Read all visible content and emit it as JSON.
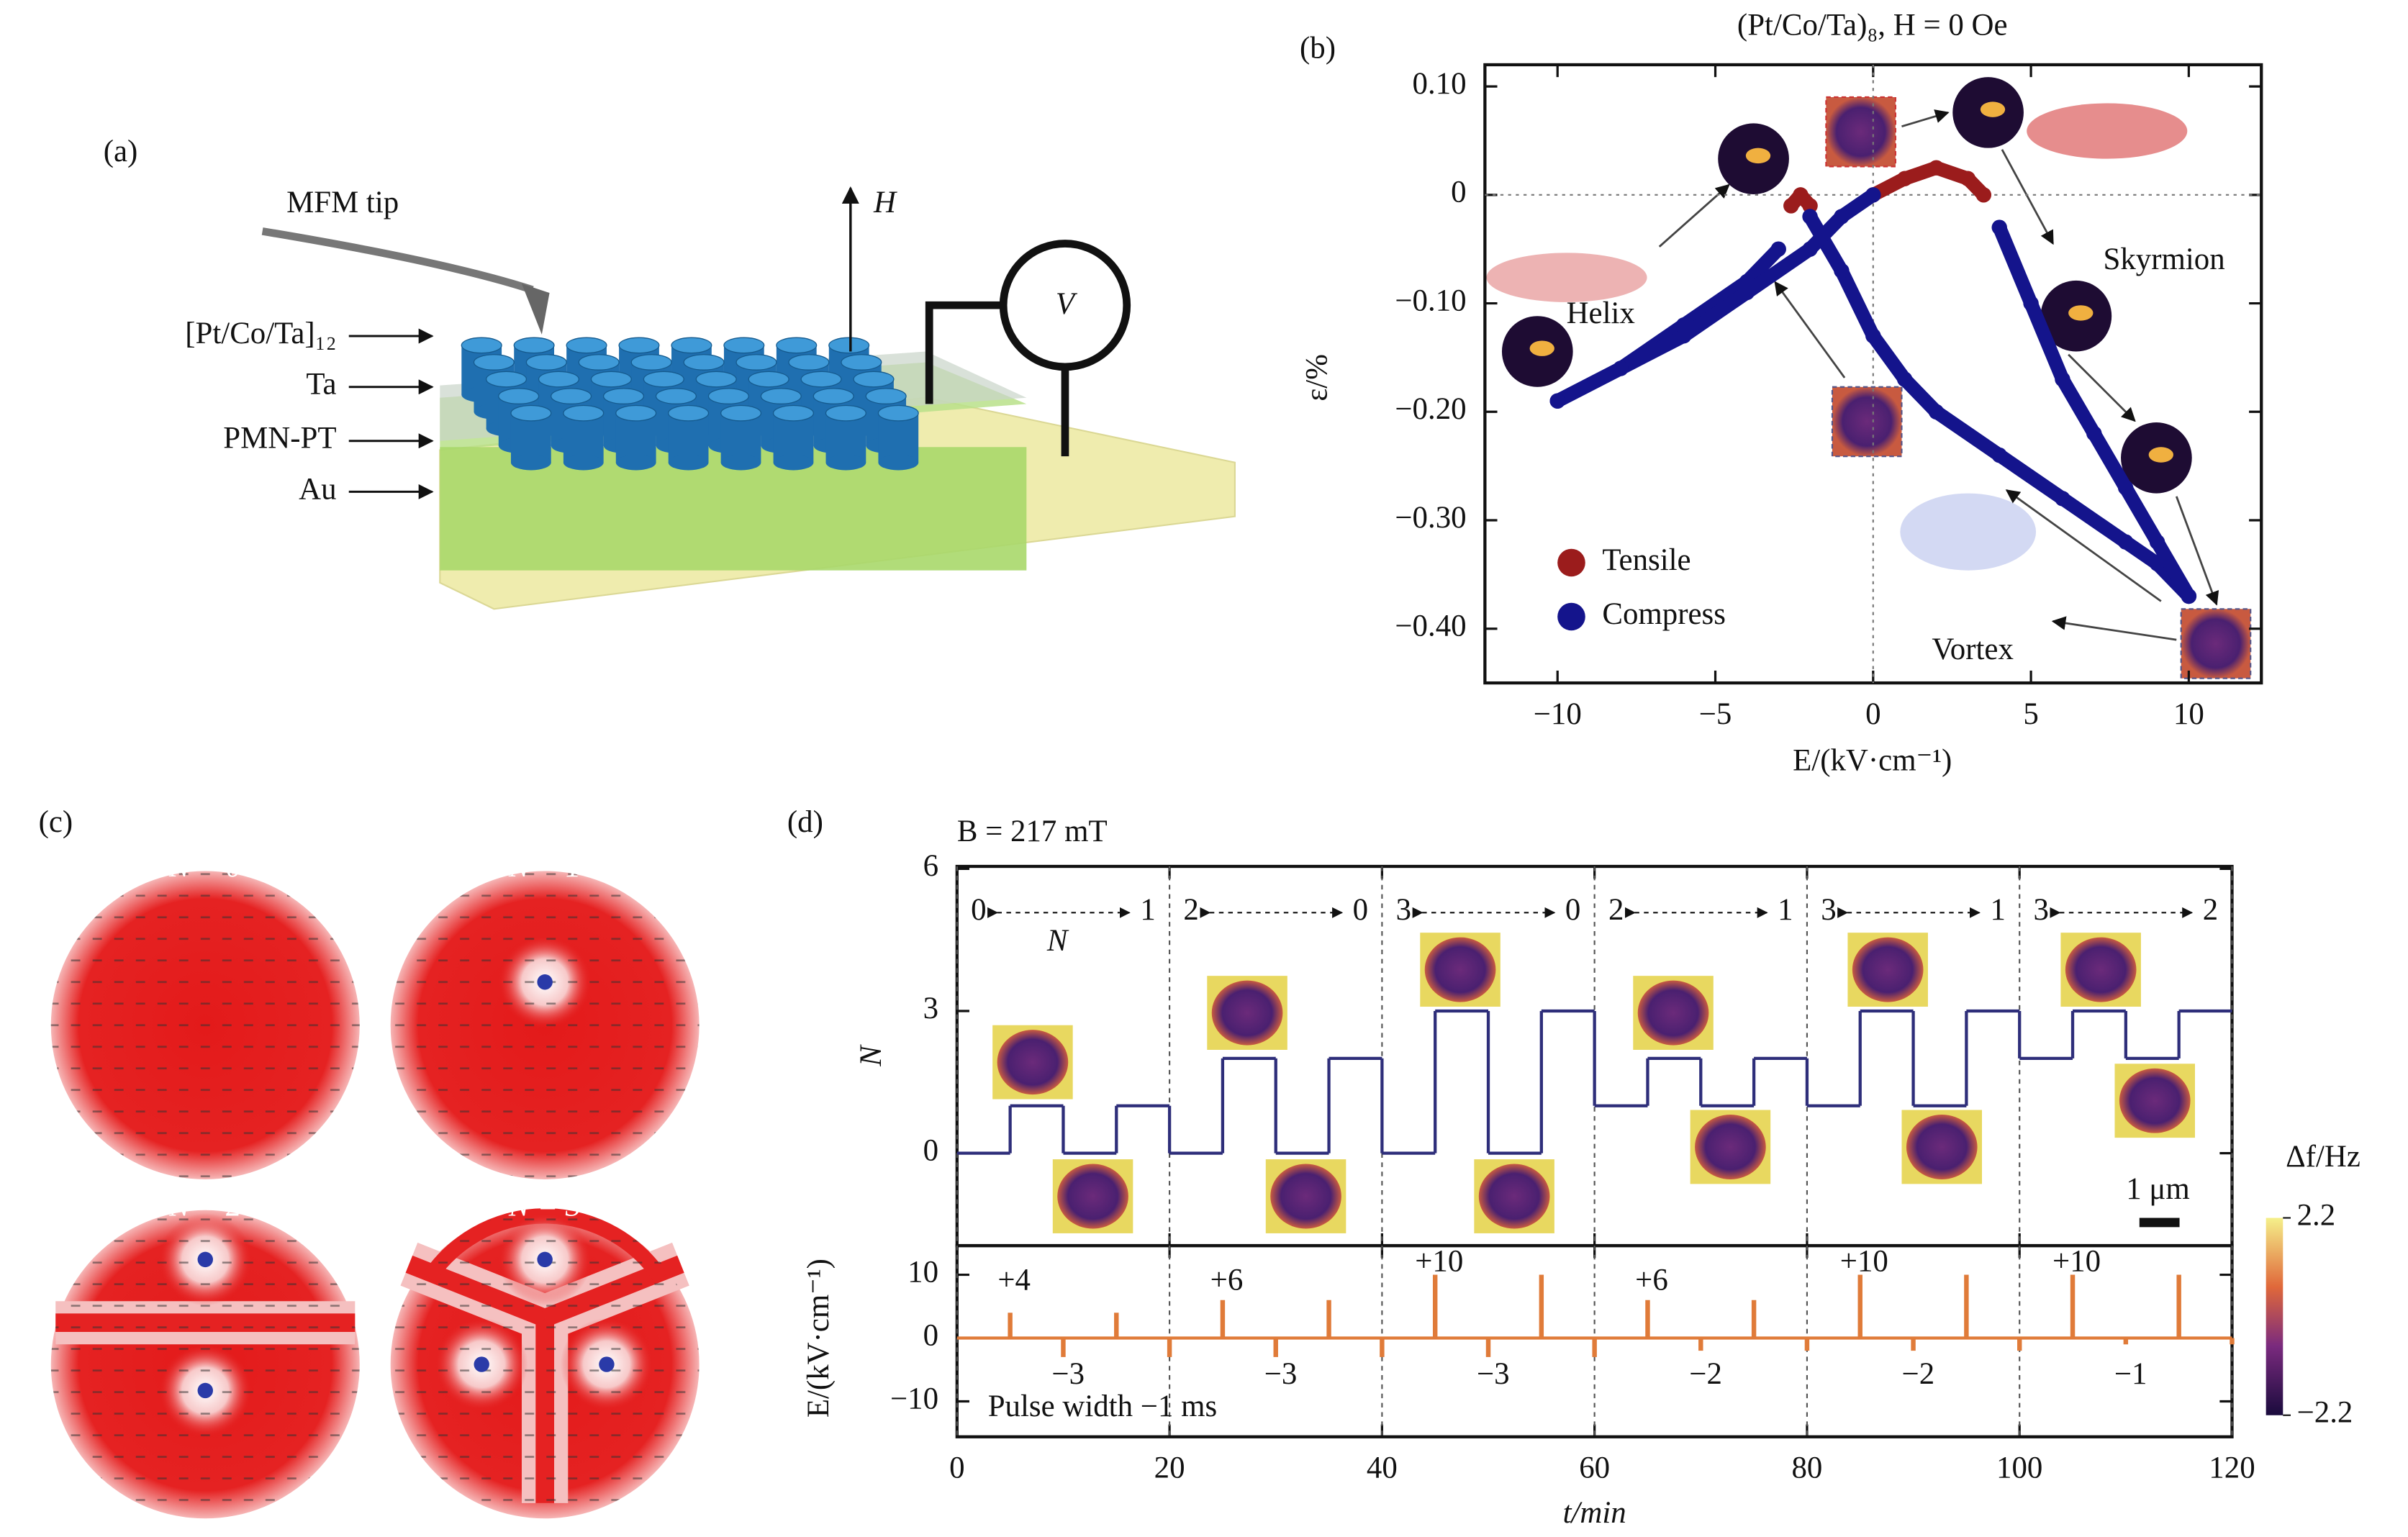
{
  "panel_labels": [
    "(a)",
    "(b)",
    "(c)",
    "(d)"
  ],
  "diagram": {
    "tip": "MFM tip",
    "layers": [
      "[Pt/Co/Ta]₁₂",
      "Ta",
      "PMN-PT",
      "Au"
    ],
    "field": "H",
    "meter": "V"
  },
  "textures": {
    "labels": [
      "N = 0",
      "N = 1",
      "N = 2",
      "N = 3"
    ]
  },
  "chart_data": [
    {
      "type": "line",
      "title": "(Pt/Co/Ta)₈, H = 0 Oe",
      "xlabel": "E/(kV·cm⁻¹)",
      "ylabel": "ε/%",
      "xlim": [
        -12.3,
        12.3
      ],
      "ylim": [
        -0.45,
        0.12
      ],
      "xticks": [
        {
          "value": -10,
          "label": "−10"
        },
        {
          "value": -5,
          "label": "−5"
        },
        0,
        5,
        10
      ],
      "yticks": [
        {
          "value": 0.1,
          "label": "0.10"
        },
        0,
        {
          "value": -0.1,
          "label": "−0.10"
        },
        {
          "value": -0.2,
          "label": "−0.20"
        },
        {
          "value": -0.3,
          "label": "−0.30"
        },
        {
          "value": -0.4,
          "label": "−0.40"
        }
      ],
      "zero_lines": true,
      "legend": "lower left",
      "annotations": [
        "Helix",
        "Skyrmion",
        "Vortex"
      ],
      "series": [
        {
          "name": "Tensile",
          "color": "#9b1c1c",
          "x": [
            -2.6,
            -2.3,
            -2,
            null,
            0,
            1,
            2,
            3,
            3.5
          ],
          "values": [
            -0.01,
            0.0,
            -0.01,
            null,
            0.0,
            0.015,
            0.025,
            0.015,
            0.0
          ]
        },
        {
          "name": "Compress",
          "color": "#14148c",
          "x": [
            10,
            9,
            8,
            6,
            4,
            2,
            1,
            0,
            -1,
            -2,
            null,
            -3,
            -4,
            -6,
            -8,
            -10,
            null,
            -10,
            -8,
            -6,
            -4,
            -2,
            -1,
            0,
            null,
            4,
            5,
            6,
            7,
            8,
            9,
            10
          ],
          "values": [
            -0.37,
            -0.34,
            -0.32,
            -0.28,
            -0.24,
            -0.2,
            -0.17,
            -0.13,
            -0.07,
            -0.02,
            null,
            -0.05,
            -0.08,
            -0.12,
            -0.16,
            -0.19,
            null,
            -0.19,
            -0.16,
            -0.13,
            -0.09,
            -0.05,
            -0.02,
            0.0,
            null,
            -0.03,
            -0.1,
            -0.17,
            -0.22,
            -0.27,
            -0.32,
            -0.37
          ]
        }
      ]
    },
    {
      "type": "step",
      "title": "B = 217 mT",
      "ylabel": "N",
      "color": "#2e2e7a",
      "x": [
        0,
        5,
        10,
        15,
        20,
        25,
        30,
        35,
        40,
        45,
        50,
        55,
        60,
        65,
        70,
        75,
        80,
        85,
        90,
        95,
        100,
        105,
        110,
        115
      ],
      "values": [
        0,
        1,
        0,
        1,
        0,
        2,
        0,
        2,
        0,
        3,
        0,
        3,
        1,
        2,
        1,
        2,
        1,
        3,
        1,
        3,
        2,
        3,
        2,
        3
      ],
      "xlim": [
        0,
        120
      ],
      "ylim": [
        -1.95,
        6.05
      ],
      "xticks": [
        0,
        20,
        40,
        60,
        80,
        100,
        120
      ],
      "yticks": [
        0,
        3,
        6
      ],
      "xgrid": "dashed",
      "xtick_labels": false,
      "transitions": [
        [
          "0",
          "1"
        ],
        [
          "2",
          "0"
        ],
        [
          "3",
          "0"
        ],
        [
          "2",
          "1"
        ],
        [
          "3",
          "1"
        ],
        [
          "3",
          "2"
        ]
      ],
      "annotations": [
        "N",
        "1 μm"
      ]
    },
    {
      "type": "pulse",
      "xlabel": "t/min",
      "ylabel": "E/(kV·cm⁻¹)",
      "color": "#e07b39",
      "x": [
        5,
        10,
        15,
        20,
        25,
        30,
        35,
        40,
        45,
        50,
        55,
        60,
        65,
        70,
        75,
        80,
        85,
        90,
        95,
        100,
        105,
        110,
        115,
        120
      ],
      "values": [
        4,
        -3,
        4,
        -3,
        6,
        -3,
        6,
        -3,
        10,
        -3,
        10,
        -3,
        6,
        -2,
        6,
        -2,
        10,
        -2,
        10,
        -2,
        10,
        -1,
        10,
        -1
      ],
      "xlim": [
        0,
        120
      ],
      "ylim": [
        -15.6,
        14.6
      ],
      "xticks": [
        0,
        20,
        40,
        60,
        80,
        100,
        120
      ],
      "yticks": [
        10,
        0,
        {
          "value": -10,
          "label": "−10"
        }
      ],
      "xgrid": "dashed",
      "pulse_labels": [
        "+4",
        "−3",
        "+6",
        "−3",
        "+10",
        "−3",
        "+6",
        "−2",
        "+10",
        "−2",
        "+10",
        "−1"
      ],
      "annotations": [
        "Pulse width −1 ms"
      ]
    }
  ],
  "colorbar": {
    "label": "Δf/Hz",
    "lim": [
      -2.2,
      2.2
    ],
    "ticks": [
      2.2,
      {
        "value": -2.2,
        "label": "−2.2"
      }
    ]
  }
}
